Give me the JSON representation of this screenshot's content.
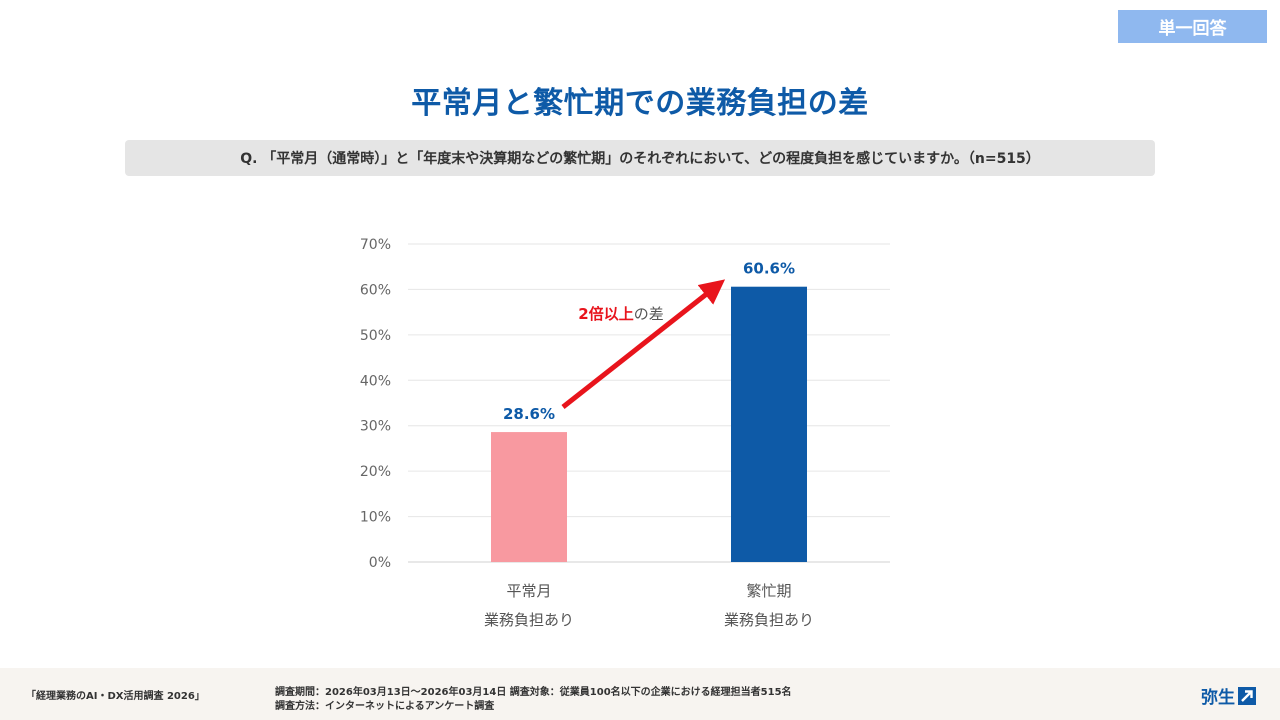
{
  "badge": "単一回答",
  "title": "平常月と繁忙期での業務負担の差",
  "question": "Q. 「平常月（通常時）」と「年度末や決算期などの繁忙期」のそれぞれにおいて、どの程度負担を感じていますか。（n=515）",
  "annotation": {
    "highlight": "2倍以上",
    "rest": "の差",
    "color": "#e8141c"
  },
  "chart_data": {
    "type": "bar",
    "categories": [
      [
        "平常月",
        "業務負担あり"
      ],
      [
        "繁忙期",
        "業務負担あり"
      ]
    ],
    "values": [
      28.6,
      60.6
    ],
    "data_labels": [
      "28.6%",
      "60.6%"
    ],
    "colors": [
      "#f899a0",
      "#0e5aa7"
    ],
    "ylim": [
      0,
      70
    ],
    "yticks": [
      "0%",
      "10%",
      "20%",
      "30%",
      "40%",
      "50%",
      "60%",
      "70%"
    ],
    "grid": true,
    "xlabel": "",
    "ylabel": "",
    "title": ""
  },
  "footer": {
    "survey_name": "「経理業務のAI・DX活用調査 2026」",
    "period": "調査期間：2026年03月13日〜2026年03月14日 調査対象：従業員100名以下の企業における経理担当者515名",
    "method": "調査方法：インターネットによるアンケート調査",
    "logo_text": "弥生",
    "logo_icon": "arrow-up-right-icon"
  }
}
